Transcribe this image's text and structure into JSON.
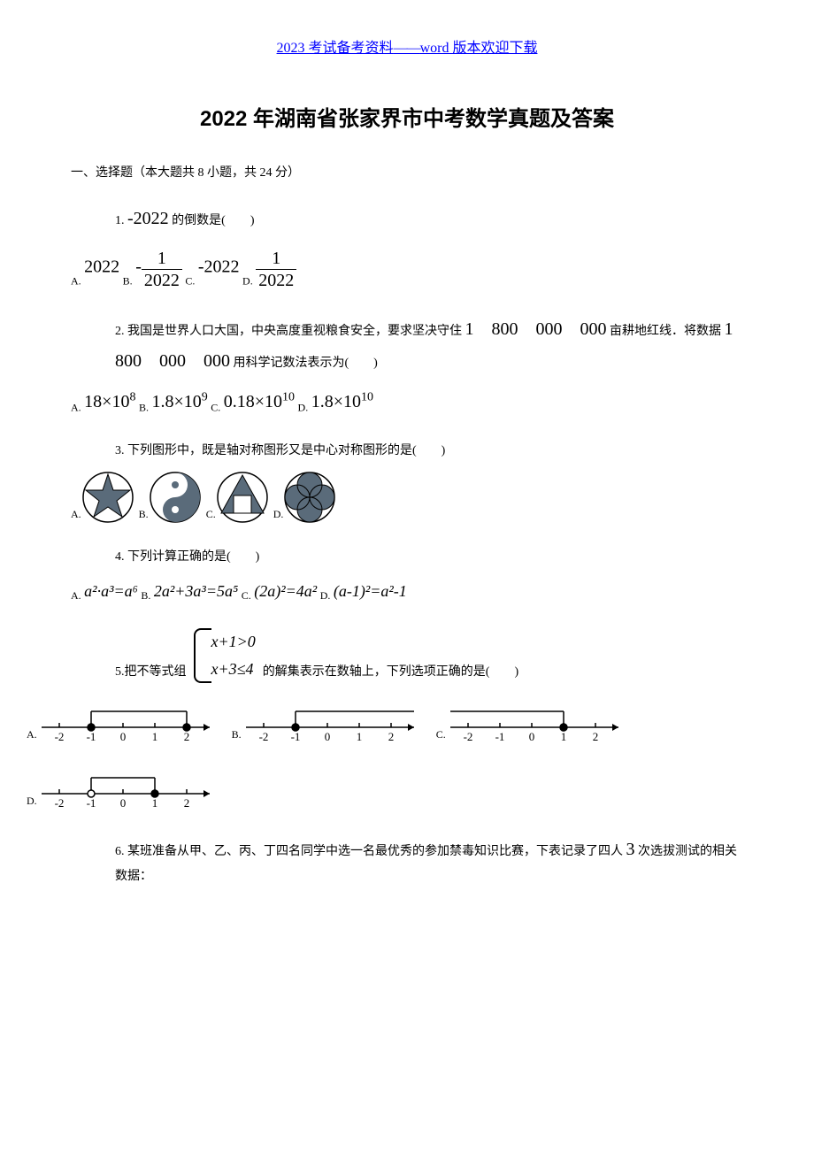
{
  "header": {
    "link_text_pre": "2023 考试备考资料",
    "link_dashes": "——",
    "link_text_post": "word 版本欢迎下载"
  },
  "title": "2022 年湖南省张家界市中考数学真题及答案",
  "section1_header": "一、选择题（本大题共 8 小题，共 24 分）",
  "q1": {
    "num": "1.",
    "value": "-2022",
    "suffix": "的倒数是(　　)",
    "optA_label": "A.",
    "optA": "2022",
    "optB_label": "B.",
    "optB_neg": "-",
    "optB_num": "1",
    "optB_den": "2022",
    "optC_label": "C.",
    "optC": "-2022",
    "optD_label": "D.",
    "optD_num": "1",
    "optD_den": "2022"
  },
  "q2": {
    "num": "2.",
    "text_pre": "我国是世界人口大国，中央高度重视粮食安全，要求坚决守住",
    "big_num1": "1　800　000　000",
    "text_mid": "亩耕地红线．将数据",
    "big_num2": "1　800　000　000",
    "text_post": "用科学记数法表示为(　　)",
    "optA_label": "A.",
    "optA_base": "18×10",
    "optA_exp": "8",
    "optB_label": "B.",
    "optB_base": "1.8×10",
    "optB_exp": "9",
    "optC_label": "C.",
    "optC_base": "0.18×10",
    "optC_exp": "10",
    "optD_label": "D.",
    "optD_base": "1.8×10",
    "optD_exp": "10"
  },
  "q3": {
    "num": "3.",
    "text": "下列图形中，既是轴对称图形又是中心对称图形的是(　　)",
    "optA_label": "A.",
    "optB_label": "B.",
    "optC_label": "C.",
    "optD_label": "D.",
    "shape_fill": "#5a6b7a",
    "shape_stroke": "#000000"
  },
  "q4": {
    "num": "4.",
    "text": "下列计算正确的是(　　)",
    "optA_label": "A.",
    "optA": "a²·a³=a⁶",
    "optB_label": "B.",
    "optB": "2a²+3a³=5a⁵",
    "optC_label": "C.",
    "optC": "(2a)²=4a²",
    "optD_label": "D.",
    "optD": "(a-1)²=a²-1"
  },
  "q5": {
    "num": "5.",
    "text_pre": "把不等式组",
    "sys1": "x+1>0",
    "sys2": "x+3≤4",
    "text_post": "的解集表示在数轴上，下列选项正确的是(　　)",
    "optA_label": "A.",
    "optB_label": "B.",
    "optC_label": "C.",
    "optD_label": "D.",
    "ticks": [
      "-2",
      "-1",
      "0",
      "1",
      "2"
    ]
  },
  "q6": {
    "num": "6.",
    "text_pre": "某班准备从甲、乙、丙、丁四名同学中选一名最优秀的参加禁毒知识比赛，下表记录了四人",
    "big3": "3",
    "text_post": "次选拔测试的相关数据："
  }
}
